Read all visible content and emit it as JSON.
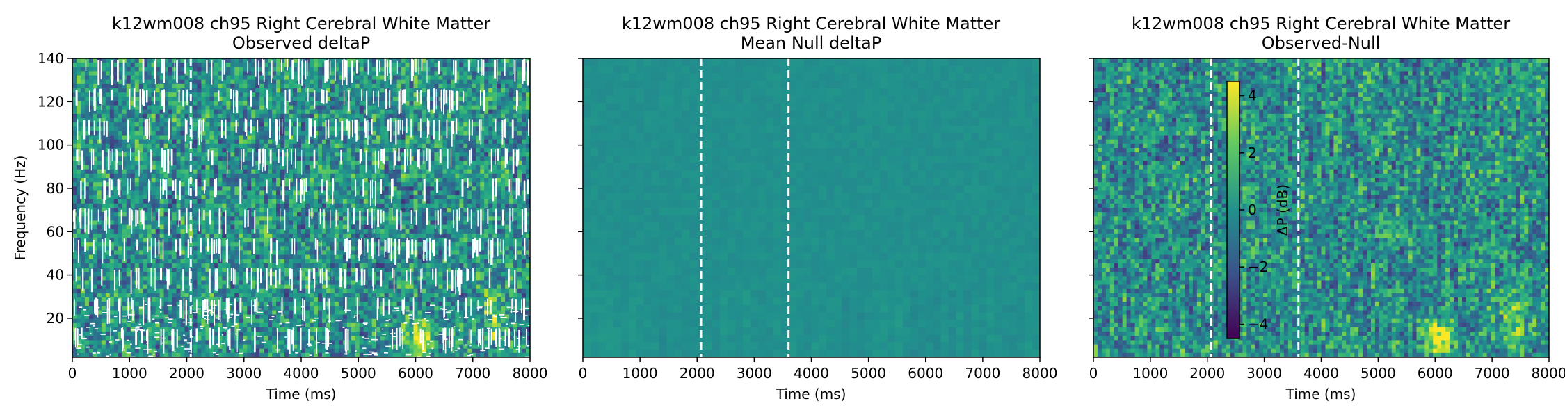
{
  "chart_data": [
    {
      "type": "heatmap",
      "title": "k12wm008 ch95 Right Cerebral White Matter",
      "subtitle": "Observed deltaP",
      "xlabel": "Time (ms)",
      "ylabel": "Frequency (Hz)",
      "xlim": [
        0,
        8000
      ],
      "ylim": [
        2,
        140
      ],
      "xticks": [
        "0",
        "1000",
        "2000",
        "3000",
        "4000",
        "5000",
        "6000",
        "7000",
        "8000"
      ],
      "yticks": [
        "20",
        "40",
        "60",
        "80",
        "100",
        "120",
        "140"
      ],
      "vlines_ms": [
        2070
      ],
      "colormap": "viridis",
      "description": "noisy power map with masked (white) cells"
    },
    {
      "type": "heatmap",
      "title": "k12wm008 ch95 Right Cerebral White Matter",
      "subtitle": "Mean Null deltaP",
      "xlabel": "Time (ms)",
      "ylabel": "",
      "xlim": [
        0,
        8000
      ],
      "ylim": [
        2,
        140
      ],
      "xticks": [
        "0",
        "1000",
        "2000",
        "3000",
        "4000",
        "5000",
        "6000",
        "7000",
        "8000"
      ],
      "yticks": [],
      "vlines_ms": [
        2070,
        3600
      ],
      "colormap": "viridis",
      "description": "nearly uniform null power map"
    },
    {
      "type": "heatmap",
      "title": "k12wm008 ch95 Right Cerebral White Matter",
      "subtitle": "Observed-Null",
      "xlabel": "Time (ms)",
      "ylabel": "",
      "xlim": [
        0,
        8000
      ],
      "ylim": [
        2,
        140
      ],
      "xticks": [
        "0",
        "1000",
        "2000",
        "3000",
        "4000",
        "5000",
        "6000",
        "7000",
        "8000"
      ],
      "yticks": [],
      "vlines_ms": [
        2070,
        3600
      ],
      "colormap": "viridis",
      "colorbar": {
        "label": "ΔP (dB)",
        "range": [
          -4.5,
          4.5
        ],
        "ticks": [
          "4",
          "2",
          "0",
          "−2",
          "−4"
        ]
      },
      "description": "difference map"
    }
  ]
}
